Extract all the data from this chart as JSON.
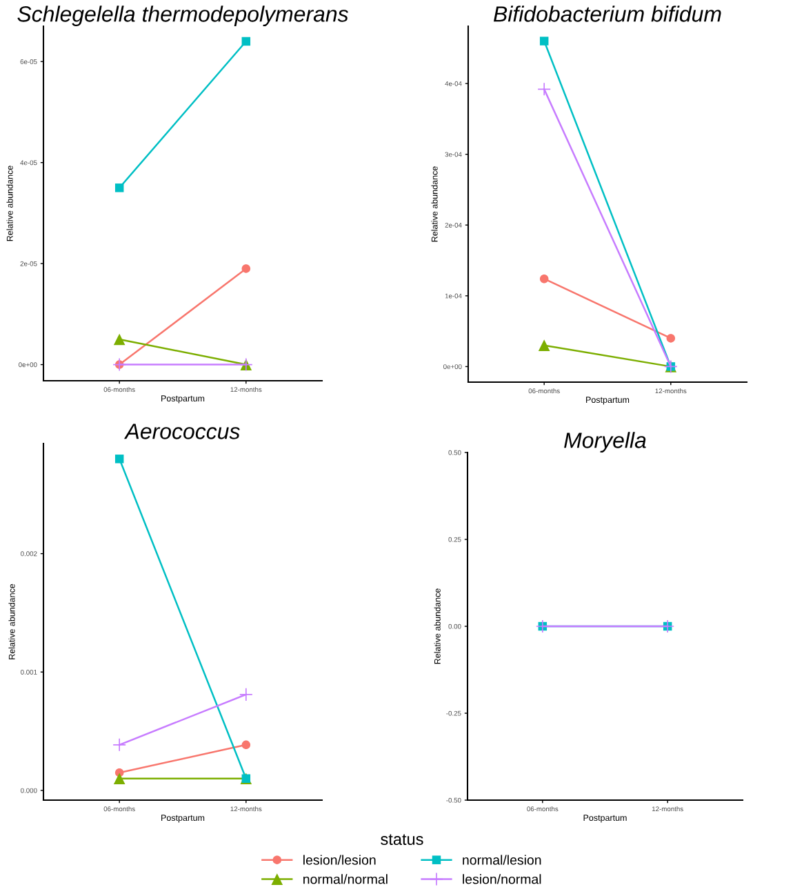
{
  "chart_data": [
    {
      "type": "line",
      "title": "Schlegelella thermodepolymerans",
      "xlabel": "Postpartum",
      "ylabel": "Relative abundance",
      "categories": [
        "06-months",
        "12-months"
      ],
      "ylim": [
        -3.2e-06,
        6.7e-05
      ],
      "yticks": [
        {
          "value": 0,
          "label": "0e+00"
        },
        {
          "value": 2e-05,
          "label": "2e-05"
        },
        {
          "value": 4e-05,
          "label": "4e-05"
        },
        {
          "value": 6e-05,
          "label": "6e-05"
        }
      ],
      "legend": "bottom",
      "legend_title": "status",
      "series": [
        {
          "name": "lesion/lesion",
          "color": "#f8766d",
          "marker": "circle",
          "values": [
            0,
            1.9e-05
          ]
        },
        {
          "name": "normal/normal",
          "color": "#7cae00",
          "marker": "triangle",
          "values": [
            5e-06,
            0
          ]
        },
        {
          "name": "normal/lesion",
          "color": "#00bfc4",
          "marker": "square",
          "values": [
            3.5e-05,
            6.4e-05
          ]
        },
        {
          "name": "lesion/normal",
          "color": "#c77cff",
          "marker": "cross",
          "values": [
            0,
            0
          ]
        }
      ]
    },
    {
      "type": "line",
      "title": "Bifidobacterium bifidum",
      "xlabel": "Postpartum",
      "ylabel": "Relative abundance",
      "categories": [
        "06-months",
        "12-months"
      ],
      "ylim": [
        -2.2e-05,
        0.000481
      ],
      "yticks": [
        {
          "value": 0,
          "label": "0e+00"
        },
        {
          "value": 0.0001,
          "label": "1e-04"
        },
        {
          "value": 0.0002,
          "label": "2e-04"
        },
        {
          "value": 0.0003,
          "label": "3e-04"
        },
        {
          "value": 0.0004,
          "label": "4e-04"
        }
      ],
      "series": [
        {
          "color": "#f8766d",
          "marker": "circle",
          "values": [
            0.000124,
            4e-05
          ]
        },
        {
          "color": "#7cae00",
          "marker": "triangle",
          "values": [
            3e-05,
            0
          ]
        },
        {
          "color": "#00bfc4",
          "marker": "square",
          "values": [
            0.00046,
            0
          ]
        },
        {
          "color": "#c77cff",
          "marker": "cross",
          "values": [
            0.000392,
            0
          ]
        }
      ]
    },
    {
      "type": "line",
      "title": "Aerococcus",
      "xlabel": "Postpartum",
      "ylabel": "Relative abundance",
      "categories": [
        "06-months",
        "12-months"
      ],
      "ylim": [
        -8.2e-05,
        0.00293
      ],
      "yticks": [
        {
          "value": 0,
          "label": "0.000"
        },
        {
          "value": 0.001,
          "label": "0.001"
        },
        {
          "value": 0.002,
          "label": "0.002"
        }
      ],
      "series": [
        {
          "color": "#f8766d",
          "marker": "circle",
          "values": [
            0.00015,
            0.000385
          ]
        },
        {
          "color": "#7cae00",
          "marker": "triangle",
          "values": [
            0.0001,
            0.0001
          ]
        },
        {
          "color": "#00bfc4",
          "marker": "square",
          "values": [
            0.0028,
            0.0001
          ]
        },
        {
          "color": "#c77cff",
          "marker": "cross",
          "values": [
            0.000385,
            0.00081
          ]
        }
      ]
    },
    {
      "type": "line",
      "title": "Moryella",
      "xlabel": "Postpartum",
      "ylabel": "Relative abundance",
      "categories": [
        "06-months",
        "12-months"
      ],
      "ylim": [
        -0.5,
        0.5
      ],
      "yticks": [
        {
          "value": -0.5,
          "label": "-0.50"
        },
        {
          "value": -0.25,
          "label": "-0.25"
        },
        {
          "value": 0,
          "label": "0.00"
        },
        {
          "value": 0.25,
          "label": "0.25"
        },
        {
          "value": 0.5,
          "label": "0.50"
        }
      ],
      "series": [
        {
          "color": "#f8766d",
          "marker": "circle",
          "values": [
            null,
            null
          ]
        },
        {
          "color": "#7cae00",
          "marker": "triangle",
          "values": [
            null,
            null
          ]
        },
        {
          "color": "#00bfc4",
          "marker": "square",
          "values": [
            0,
            0
          ]
        },
        {
          "color": "#c77cff",
          "marker": "cross",
          "values": [
            0,
            0
          ]
        }
      ]
    }
  ]
}
